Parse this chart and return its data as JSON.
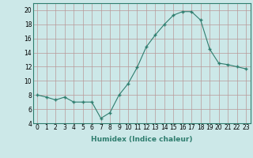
{
  "x": [
    0,
    1,
    2,
    3,
    4,
    5,
    6,
    7,
    8,
    9,
    10,
    11,
    12,
    13,
    14,
    15,
    16,
    17,
    18,
    19,
    20,
    21,
    22,
    23
  ],
  "y": [
    8.0,
    7.7,
    7.3,
    7.7,
    7.0,
    7.0,
    7.0,
    4.7,
    5.5,
    8.0,
    9.6,
    11.9,
    14.8,
    16.5,
    18.0,
    19.3,
    19.8,
    19.8,
    18.6,
    14.5,
    12.5,
    12.3,
    12.0,
    11.7
  ],
  "xlabel": "Humidex (Indice chaleur)",
  "xlim": [
    -0.5,
    23.5
  ],
  "ylim": [
    4,
    21
  ],
  "yticks": [
    4,
    6,
    8,
    10,
    12,
    14,
    16,
    18,
    20
  ],
  "xticks": [
    0,
    1,
    2,
    3,
    4,
    5,
    6,
    7,
    8,
    9,
    10,
    11,
    12,
    13,
    14,
    15,
    16,
    17,
    18,
    19,
    20,
    21,
    22,
    23
  ],
  "line_color": "#2e7d6e",
  "marker_color": "#2e7d6e",
  "bg_color": "#cce8e8",
  "grid_color": "#b89898",
  "fig_bg": "#cce8e8",
  "label_fontsize": 6.5,
  "tick_fontsize": 5.5,
  "spine_color": "#2e7d6e"
}
